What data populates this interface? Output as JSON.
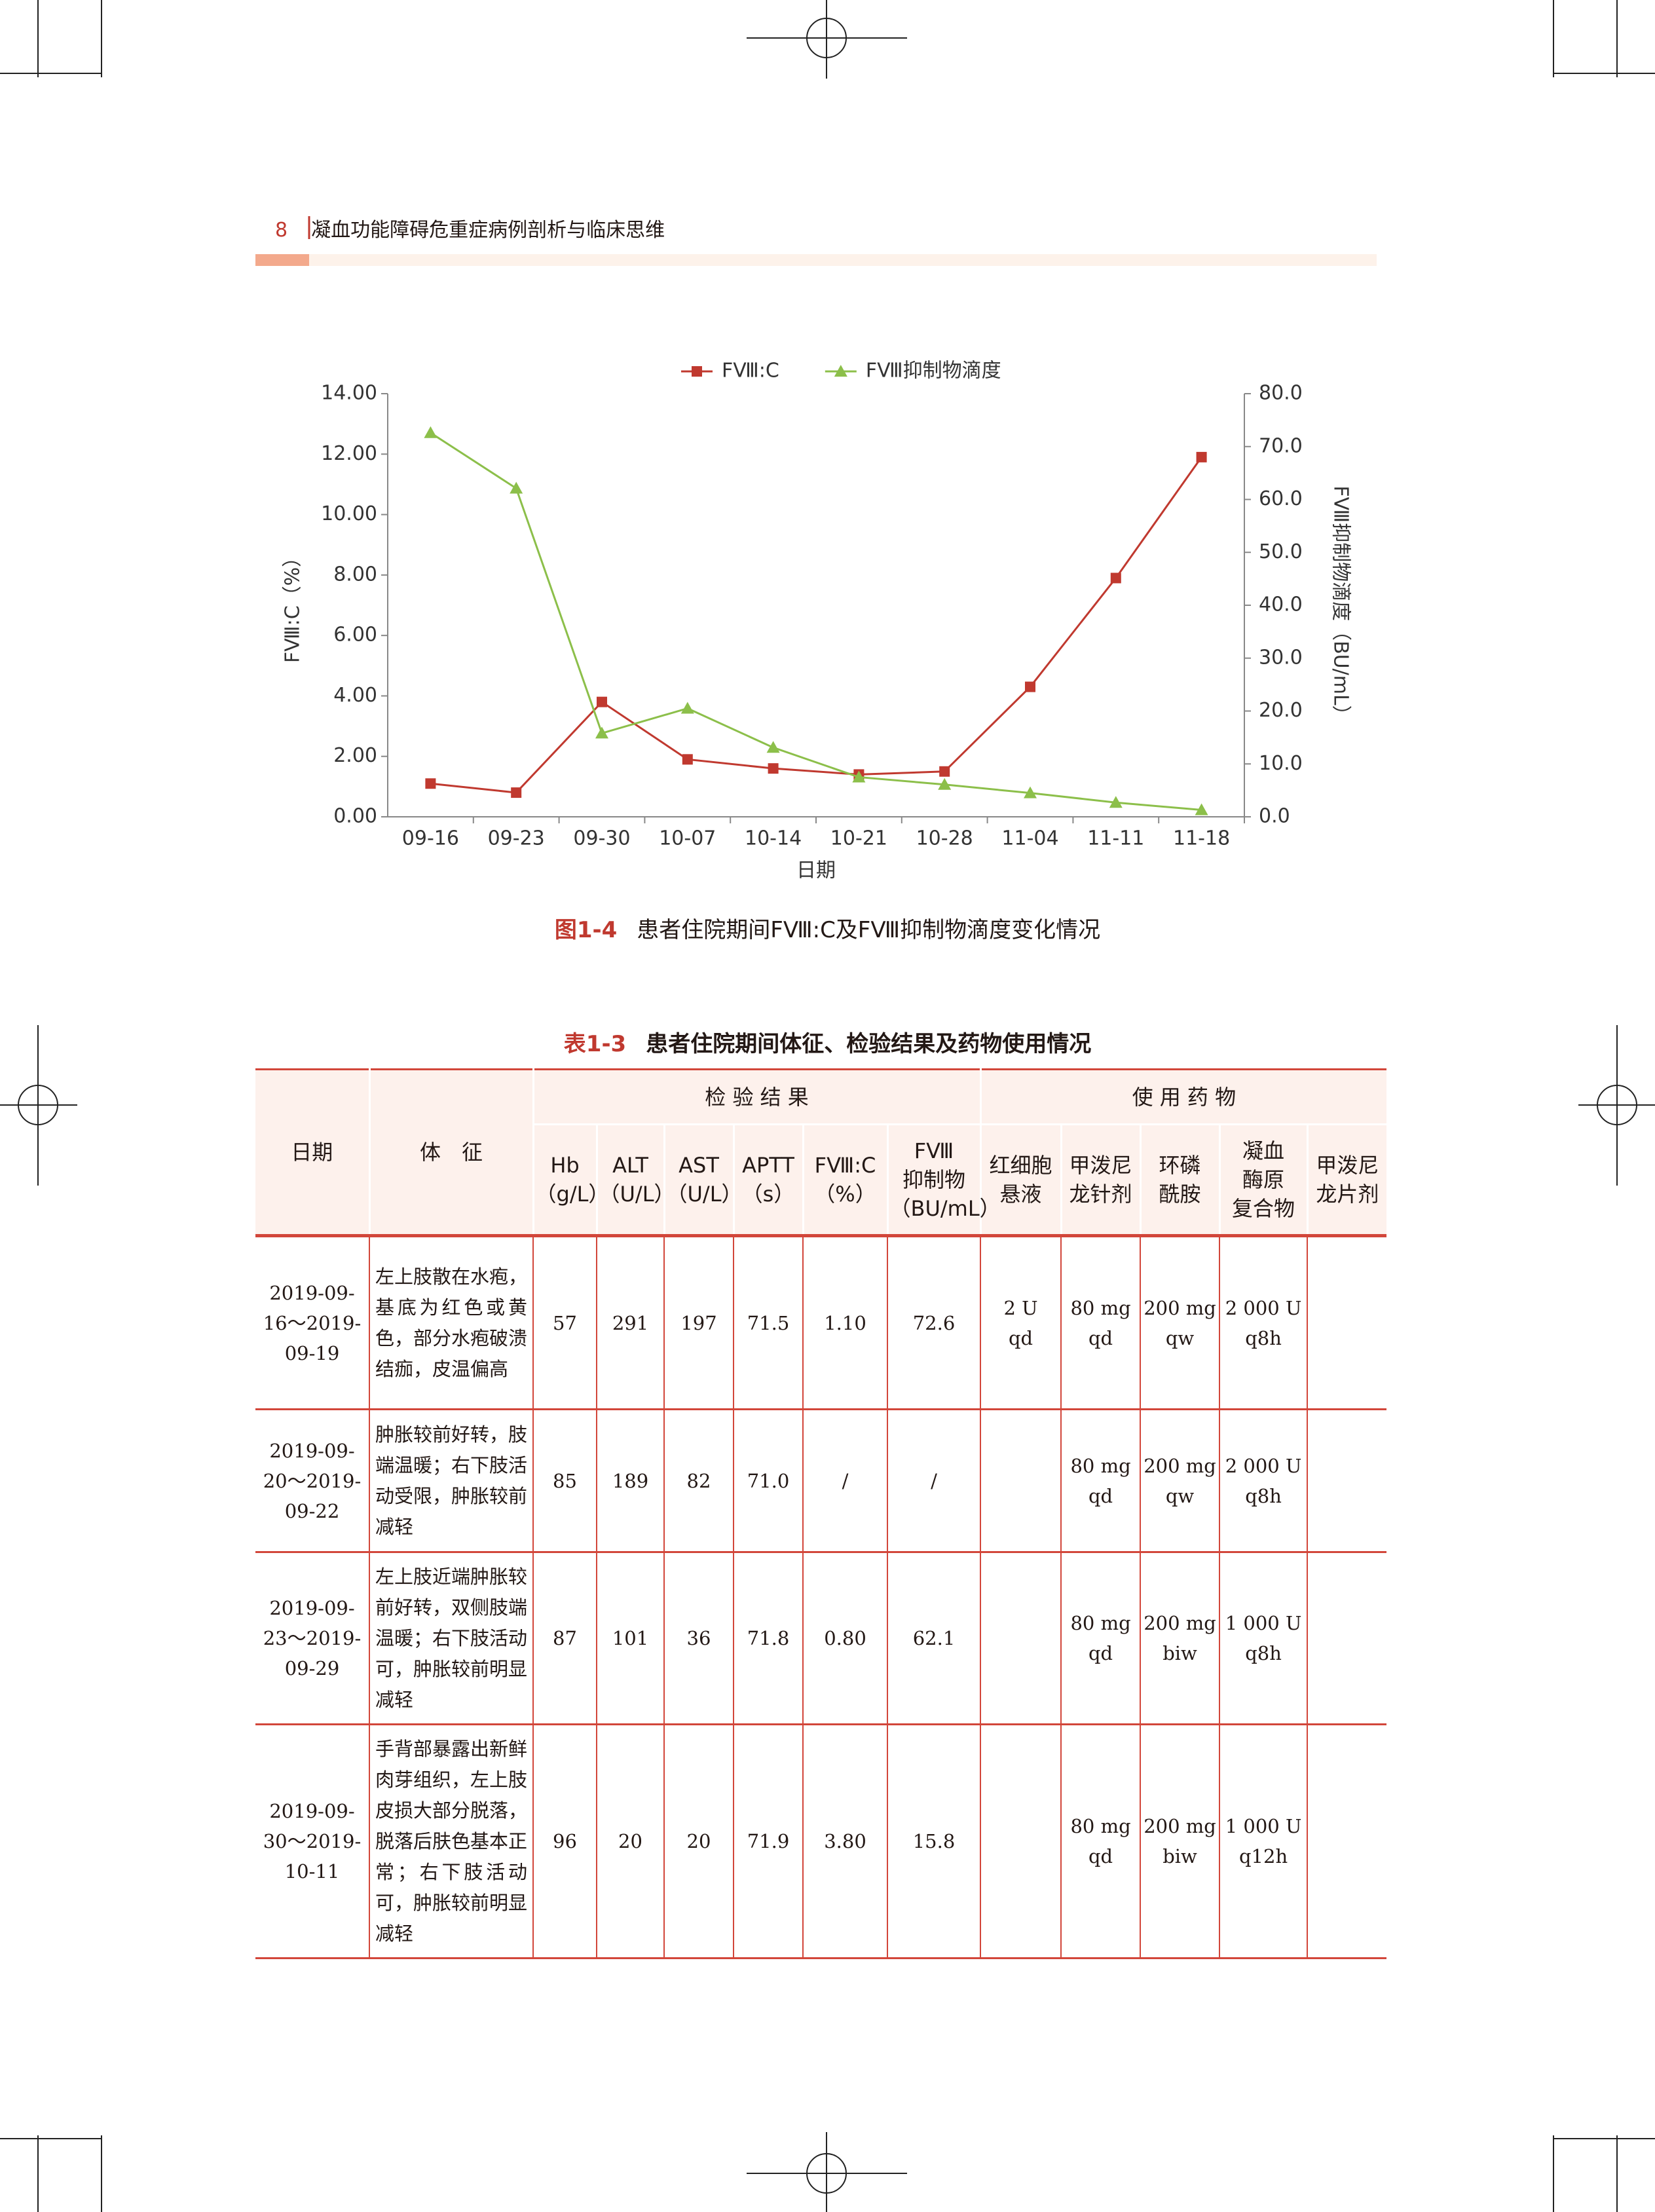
{
  "header": {
    "page_number": "8",
    "book_title": "凝血功能障碍危重症病例剖析与临床思维"
  },
  "figure": {
    "caption_label": "图1-4",
    "caption_text": "患者住院期间FⅧ:C及FⅧ抑制物滴度变化情况"
  },
  "chart_data": {
    "type": "line",
    "x_label": "日期",
    "y_label": "FⅧ:C（%）",
    "y2_label": "FⅧ抑制物滴度（BU/mL）",
    "categories": [
      "09-16",
      "09-23",
      "09-30",
      "10-07",
      "10-14",
      "10-21",
      "10-28",
      "11-04",
      "11-11",
      "11-18"
    ],
    "series": [
      {
        "name": "FⅧ:C",
        "color": "#c0392f",
        "marker": "square",
        "values": [
          1.1,
          0.8,
          3.8,
          1.9,
          1.6,
          1.4,
          1.5,
          4.3,
          7.9,
          11.9
        ]
      },
      {
        "name": "FⅧ抑制物滴度",
        "color": "#8cbf4a",
        "marker": "triangle",
        "axis": "y2",
        "values": [
          72.6,
          62.1,
          15.8,
          20.5,
          13.1,
          7.5,
          6.1,
          4.5,
          2.7,
          1.3
        ]
      }
    ],
    "ylim": [
      0,
      14
    ],
    "yticks": [
      {
        "value": 0,
        "label": "0.00"
      },
      {
        "value": 2,
        "label": "2.00"
      },
      {
        "value": 4,
        "label": "4.00"
      },
      {
        "value": 6,
        "label": "6.00"
      },
      {
        "value": 8,
        "label": "8.00"
      },
      {
        "value": 10,
        "label": "10.00"
      },
      {
        "value": 12,
        "label": "12.00"
      },
      {
        "value": 14,
        "label": "14.00"
      }
    ],
    "y2lim": [
      0,
      80
    ],
    "y2ticks": [
      {
        "value": 0,
        "label": "0.0"
      },
      {
        "value": 10,
        "label": "10.0"
      },
      {
        "value": 20,
        "label": "20.0"
      },
      {
        "value": 30,
        "label": "30.0"
      },
      {
        "value": 40,
        "label": "40.0"
      },
      {
        "value": 50,
        "label": "50.0"
      },
      {
        "value": 60,
        "label": "60.0"
      },
      {
        "value": 70,
        "label": "70.0"
      },
      {
        "value": 80,
        "label": "80.0"
      }
    ],
    "grid": false,
    "legend": "top"
  },
  "table": {
    "caption_label": "表1-3",
    "caption_text": "患者住院期间体征、检验结果及药物使用情况",
    "group_headers": [
      "检 验 结 果",
      "使 用 药 物"
    ],
    "columns": [
      "日期",
      "体　征",
      "Hb\n（g/L）",
      "ALT\n（U/L）",
      "AST\n（U/L）",
      "APTT\n（s）",
      "FⅧ:C\n（%）",
      "FⅧ\n抑制物\n（BU/mL）",
      "红细胞\n悬液",
      "甲泼尼\n龙针剂",
      "环磷\n酰胺",
      "凝血\n酶原\n复合物",
      "甲泼尼\n龙片剂"
    ],
    "rows": [
      [
        "2019-09-16～2019-09-19",
        "左上肢散在水疱，基底为红色或黄色，部分水疱破溃结痂，皮温偏高",
        "57",
        "291",
        "197",
        "71.5",
        "1.10",
        "72.6",
        "2 U\nqd",
        "80 mg\nqd",
        "200 mg\nqw",
        "2 000 U\nq8h",
        null
      ],
      [
        "2019-09-20～2019-09-22",
        "肿胀较前好转，肢端温暖；右下肢活动受限，肿胀较前减轻",
        "85",
        "189",
        "82",
        "71.0",
        "/",
        "/",
        null,
        "80 mg\nqd",
        "200 mg\nqw",
        "2 000 U\nq8h",
        null
      ],
      [
        "2019-09-23～2019-09-29",
        "左上肢近端肿胀较前好转，双侧肢端温暖；右下肢活动可，肿胀较前明显减轻",
        "87",
        "101",
        "36",
        "71.8",
        "0.80",
        "62.1",
        null,
        "80 mg\nqd",
        "200 mg\nbiw",
        "1 000 U\nq8h",
        null
      ],
      [
        "2019-09-30～2019-10-11",
        "手背部暴露出新鲜肉芽组织，左上肢皮损大部分脱落，脱落后肤色基本正常；右下肢活动可，肿胀较前明显减轻",
        "96",
        "20",
        "20",
        "71.9",
        "3.80",
        "15.8",
        null,
        "80 mg\nqd",
        "200 mg\nbiw",
        "1 000 U\nq12h",
        null
      ]
    ]
  }
}
